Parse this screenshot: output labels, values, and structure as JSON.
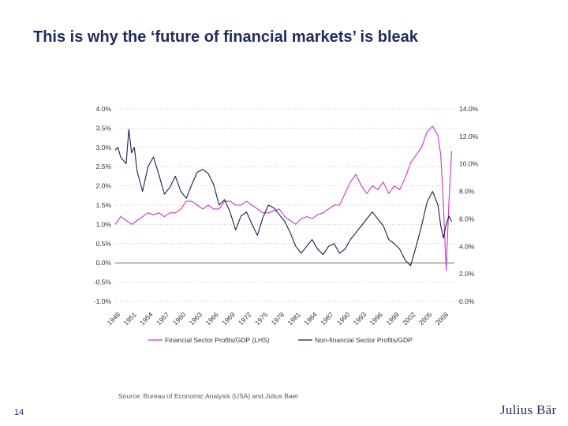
{
  "slide": {
    "title": "This is why the ‘future of financial markets’ is bleak",
    "source": "Source: Bureau of Economic Analysis (USA) and Julius Baer",
    "page_number": "14",
    "logo_text": "Julius Bär"
  },
  "colors": {
    "financial": "#cc33cc",
    "nonfinancial": "#1a1f4d",
    "title": "#1f2d5c"
  },
  "chart_data": {
    "type": "line",
    "title": "",
    "xlabel": "",
    "ylabel": "",
    "xlim": [
      1948,
      2010
    ],
    "ylim_left": [
      -1.0,
      4.0
    ],
    "ylim_right": [
      0.0,
      14.0
    ],
    "grid": true,
    "legend_position": "bottom",
    "left_tick_labels": [
      "4.0%",
      "3.5%",
      "3.0%",
      "2.5%",
      "2.0%",
      "1.5%",
      "1.0%",
      "0.5%",
      "0.0%",
      "-0.5%",
      "-1.0%"
    ],
    "right_tick_labels": [
      "14.0%",
      "12.0%",
      "10.0%",
      "8.0%",
      "6.0%",
      "4.0%",
      "2.0%",
      "0.0%"
    ],
    "x_tick_labels": [
      "1948",
      "1951",
      "1954",
      "1957",
      "1960",
      "1963",
      "1966",
      "1969",
      "1972",
      "1975",
      "1978",
      "1981",
      "1984",
      "1987",
      "1990",
      "1993",
      "1996",
      "1999",
      "2002",
      "2005",
      "2008"
    ],
    "series": [
      {
        "name": "Financial Sector Profits/GDP (LHS)",
        "axis": "left",
        "x": [
          1948,
          1949,
          1950,
          1951,
          1952,
          1953,
          1954,
          1955,
          1956,
          1957,
          1958,
          1959,
          1960,
          1961,
          1962,
          1963,
          1964,
          1965,
          1966,
          1967,
          1968,
          1969,
          1970,
          1971,
          1972,
          1973,
          1974,
          1975,
          1976,
          1977,
          1978,
          1979,
          1980,
          1981,
          1982,
          1983,
          1984,
          1985,
          1986,
          1987,
          1988,
          1989,
          1990,
          1991,
          1992,
          1993,
          1994,
          1995,
          1996,
          1997,
          1998,
          1999,
          2000,
          2001,
          2002,
          2003,
          2004,
          2005,
          2006,
          2007,
          2007.5,
          2008,
          2008.5,
          2009,
          2009.5
        ],
        "y": [
          1.0,
          1.2,
          1.1,
          1.0,
          1.1,
          1.2,
          1.3,
          1.25,
          1.3,
          1.2,
          1.3,
          1.3,
          1.4,
          1.6,
          1.6,
          1.5,
          1.4,
          1.5,
          1.4,
          1.4,
          1.6,
          1.6,
          1.5,
          1.5,
          1.6,
          1.5,
          1.4,
          1.3,
          1.3,
          1.35,
          1.4,
          1.2,
          1.1,
          1.0,
          1.15,
          1.2,
          1.15,
          1.25,
          1.3,
          1.4,
          1.5,
          1.5,
          1.8,
          2.1,
          2.3,
          2.0,
          1.8,
          2.0,
          1.9,
          2.1,
          1.8,
          2.0,
          1.9,
          2.2,
          2.6,
          2.8,
          3.0,
          3.4,
          3.55,
          3.3,
          2.8,
          1.5,
          -0.2,
          1.6,
          2.9
        ]
      },
      {
        "name": "Non-financial Sector Profits/GDP",
        "axis": "right",
        "x": [
          1948,
          1948.5,
          1949,
          1950,
          1950.5,
          1951,
          1951.5,
          1952,
          1953,
          1954,
          1955,
          1956,
          1957,
          1958,
          1959,
          1960,
          1961,
          1962,
          1963,
          1964,
          1965,
          1966,
          1967,
          1968,
          1969,
          1970,
          1971,
          1972,
          1973,
          1974,
          1975,
          1976,
          1977,
          1978,
          1979,
          1980,
          1981,
          1982,
          1983,
          1984,
          1985,
          1986,
          1987,
          1988,
          1989,
          1990,
          1991,
          1992,
          1993,
          1994,
          1995,
          1996,
          1997,
          1998,
          1999,
          2000,
          2001,
          2002,
          2003,
          2004,
          2005,
          2006,
          2007,
          2007.5,
          2008,
          2008.5,
          2009,
          2009.5
        ],
        "y": [
          11.0,
          11.2,
          10.5,
          10.0,
          12.5,
          10.8,
          11.2,
          9.5,
          8.0,
          9.8,
          10.5,
          9.2,
          7.8,
          8.3,
          9.1,
          8.0,
          7.5,
          8.5,
          9.4,
          9.6,
          9.3,
          8.5,
          7.0,
          7.4,
          6.5,
          5.2,
          6.2,
          6.5,
          5.6,
          4.8,
          6.1,
          7.0,
          6.8,
          6.3,
          5.8,
          5.0,
          4.0,
          3.5,
          4.0,
          4.5,
          3.8,
          3.4,
          4.0,
          4.2,
          3.5,
          3.8,
          4.5,
          5.0,
          5.5,
          6.0,
          6.5,
          6.0,
          5.5,
          4.5,
          4.2,
          3.8,
          3.0,
          2.6,
          4.0,
          5.5,
          7.2,
          8.0,
          7.0,
          5.5,
          4.6,
          5.6,
          6.2,
          5.8
        ]
      }
    ]
  }
}
